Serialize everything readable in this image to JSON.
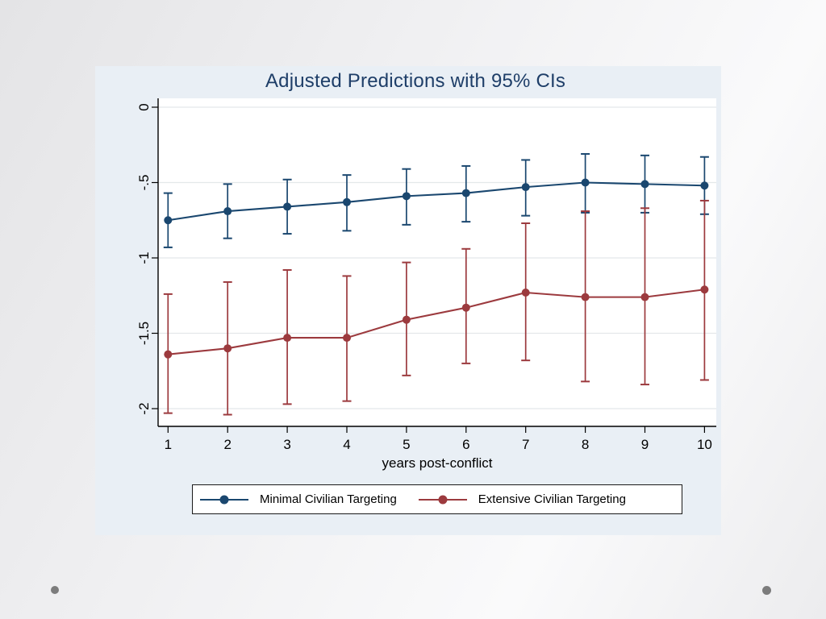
{
  "colors": {
    "chart_bg": "#e9eff5",
    "plot_bg": "#ffffff",
    "grid": "#e4e8ea",
    "axis": "#000000",
    "tick_text": "#000000",
    "title_text": "#1e3e68",
    "legend_border": "#1a1a1a",
    "series_blue": "#1a476f",
    "series_red": "#9c3a3e",
    "corner_dot": "#7c7c7c"
  },
  "chart_data": {
    "type": "line",
    "title": "Adjusted Predictions with 95% CIs",
    "xlabel": "years post-conflict",
    "ylabel": "",
    "x": [
      1,
      2,
      3,
      4,
      5,
      6,
      7,
      8,
      9,
      10
    ],
    "xticks": [
      "1",
      "2",
      "3",
      "4",
      "5",
      "6",
      "7",
      "8",
      "9",
      "10"
    ],
    "yticks": [
      {
        "v": 0,
        "label": "0"
      },
      {
        "v": -0.5,
        "label": "-.5"
      },
      {
        "v": -1,
        "label": "-1"
      },
      {
        "v": -1.5,
        "label": "-1.5"
      },
      {
        "v": -2,
        "label": "-2"
      }
    ],
    "xlim": [
      0.83,
      10.2
    ],
    "ylim": [
      -2.12,
      0.06
    ],
    "grid": true,
    "legend_position": "bottom",
    "error_bars": "95% CI",
    "series": [
      {
        "name": "Minimal Civilian Targeting",
        "color": "#1a476f",
        "values": [
          -0.75,
          -0.69,
          -0.66,
          -0.63,
          -0.59,
          -0.57,
          -0.53,
          -0.5,
          -0.51,
          -0.52
        ],
        "ci_low": [
          -0.93,
          -0.87,
          -0.84,
          -0.82,
          -0.78,
          -0.76,
          -0.72,
          -0.7,
          -0.7,
          -0.71
        ],
        "ci_high": [
          -0.57,
          -0.51,
          -0.48,
          -0.45,
          -0.41,
          -0.39,
          -0.35,
          -0.31,
          -0.32,
          -0.33
        ]
      },
      {
        "name": "Extensive Civilian Targeting",
        "color": "#9c3a3e",
        "values": [
          -1.64,
          -1.6,
          -1.53,
          -1.53,
          -1.41,
          -1.33,
          -1.23,
          -1.26,
          -1.26,
          -1.21
        ],
        "ci_low": [
          -2.03,
          -2.04,
          -1.97,
          -1.95,
          -1.78,
          -1.7,
          -1.68,
          -1.82,
          -1.84,
          -1.81
        ],
        "ci_high": [
          -1.24,
          -1.16,
          -1.08,
          -1.12,
          -1.03,
          -0.94,
          -0.77,
          -0.69,
          -0.67,
          -0.62
        ]
      }
    ]
  }
}
